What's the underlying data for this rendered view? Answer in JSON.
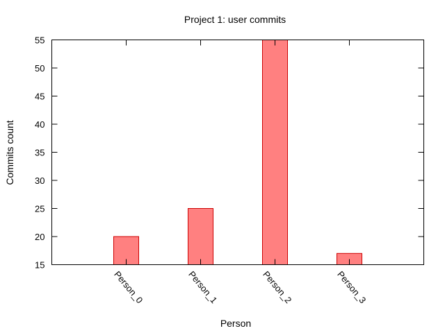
{
  "chart_data": {
    "type": "bar",
    "title": "Project 1: user commits",
    "xlabel": "Person",
    "ylabel": "Commits count",
    "categories": [
      "Person_0",
      "Person_1",
      "Person_2",
      "Person_3"
    ],
    "values": [
      20,
      25,
      55,
      17
    ],
    "ylim": [
      15,
      55
    ],
    "yticks": [
      15,
      20,
      25,
      30,
      35,
      40,
      45,
      50,
      55
    ],
    "grid": false,
    "bar_fill": "#ff8080",
    "bar_stroke": "#cc0000"
  }
}
